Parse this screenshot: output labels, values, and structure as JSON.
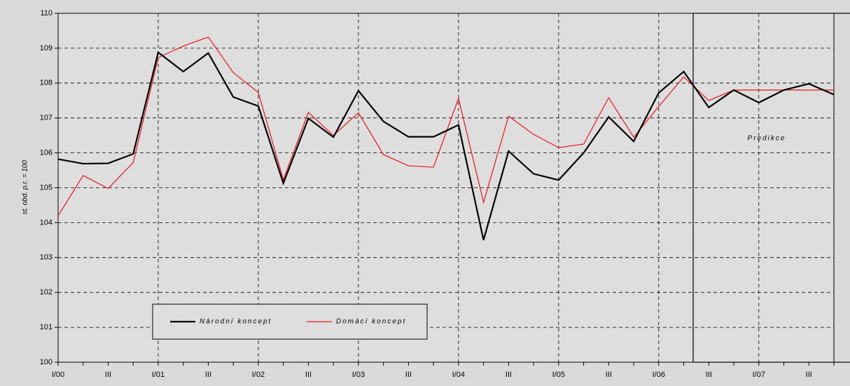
{
  "chart_data": {
    "type": "line",
    "y_label": "st. obd. p.r. = 100",
    "annotation": "Predikce",
    "categories": [
      "I/00",
      null,
      "III",
      null,
      "I/01",
      null,
      "III",
      null,
      "I/02",
      null,
      "III",
      null,
      "I/03",
      null,
      "III",
      null,
      "I/04",
      null,
      "III",
      null,
      "I/05",
      null,
      "III",
      null,
      "I/06",
      null,
      "III",
      null,
      "I/07",
      null,
      "III",
      null
    ],
    "series": [
      {
        "name": "Národní koncept",
        "color": "#000000",
        "values": [
          105.82,
          105.69,
          105.7,
          105.97,
          108.88,
          108.33,
          108.86,
          107.6,
          107.34,
          105.13,
          106.99,
          106.45,
          107.78,
          106.9,
          106.46,
          106.46,
          106.8,
          103.5,
          106.05,
          105.4,
          105.22,
          106.0,
          107.03,
          106.33,
          107.72,
          108.33,
          107.3,
          107.8,
          107.44,
          107.8,
          107.98,
          107.67
        ]
      },
      {
        "name": "Domácí koncept",
        "color": "#e8141c",
        "values": [
          104.2,
          105.35,
          104.98,
          105.72,
          108.73,
          109.06,
          109.32,
          108.3,
          107.73,
          105.23,
          107.16,
          106.5,
          107.15,
          105.95,
          105.63,
          105.59,
          107.56,
          104.58,
          107.05,
          106.53,
          106.15,
          106.25,
          107.58,
          106.45,
          107.33,
          108.18,
          107.5,
          107.8,
          107.8,
          107.8,
          107.8,
          107.8
        ]
      }
    ],
    "ylim": [
      100,
      110
    ],
    "yticks": [
      100,
      101,
      102,
      103,
      104,
      105,
      106,
      107,
      108,
      109,
      110
    ],
    "grid": true
  }
}
